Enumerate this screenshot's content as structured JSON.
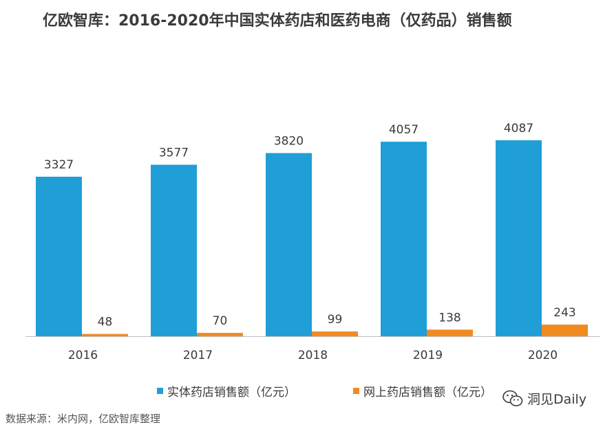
{
  "chart_data": {
    "type": "bar",
    "title": "亿欧智库：2016-2020年中国实体药店和医药电商（仅药品）销售额",
    "categories": [
      "2016",
      "2017",
      "2018",
      "2019",
      "2020"
    ],
    "series": [
      {
        "name": "实体药店销售额（亿元）",
        "color": "#1f9fd6",
        "values": [
          3327,
          3577,
          3820,
          4057,
          4087
        ]
      },
      {
        "name": "网上药店销售额（亿元）",
        "color": "#f18a21",
        "values": [
          48,
          70,
          99,
          138,
          243
        ]
      }
    ],
    "xlabel": "",
    "ylabel": "",
    "ylim": [
      0,
      4500
    ],
    "grid": false,
    "legend": "bottom"
  },
  "source": "数据来源：米内网，亿欧智库整理",
  "watermark": "洞见Daily",
  "colors": {
    "axis": "#bfbfbf",
    "label": "#3a3a3a"
  }
}
